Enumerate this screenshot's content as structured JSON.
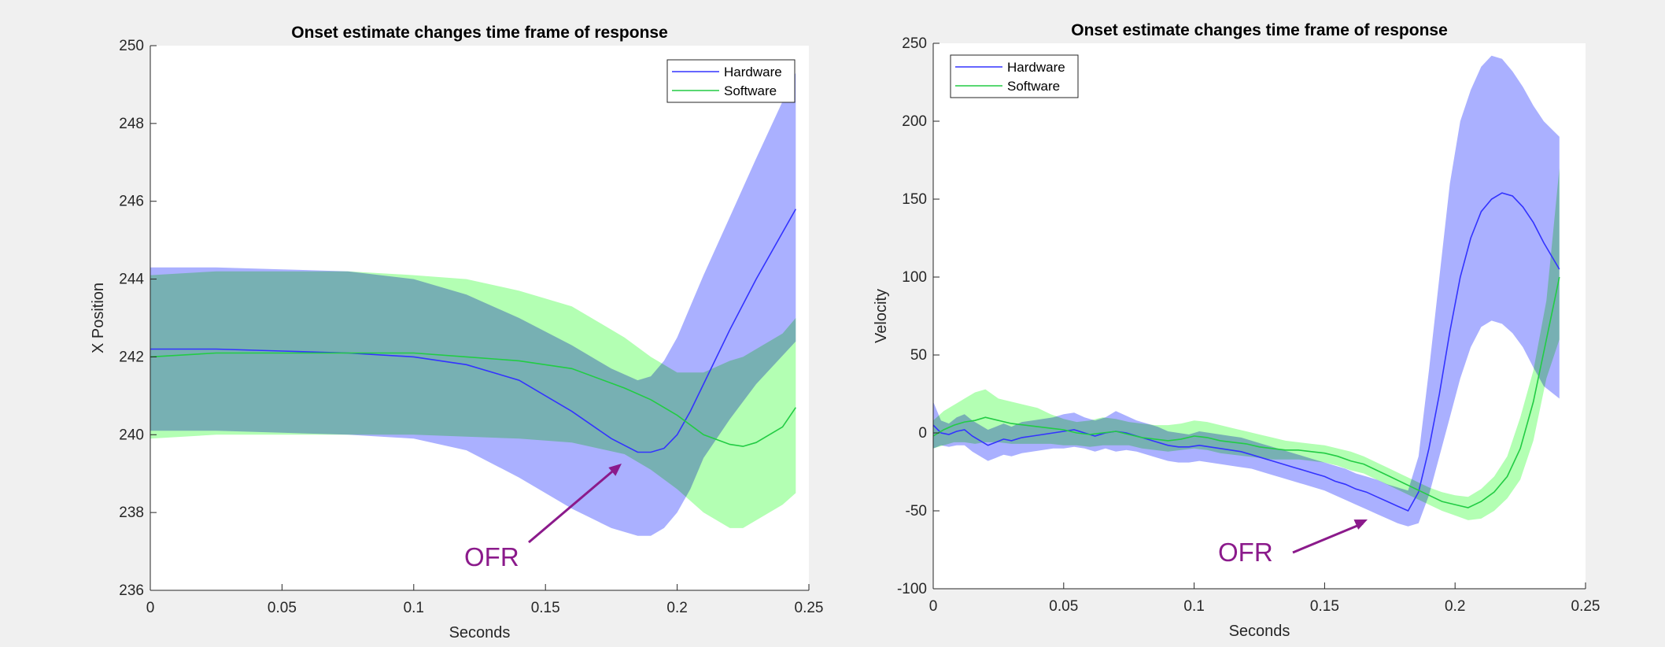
{
  "chart_data": [
    {
      "type": "line",
      "title": "Onset estimate changes time frame of response",
      "xlabel": "Seconds",
      "ylabel": "X Position",
      "xlim": [
        0,
        0.25
      ],
      "ylim": [
        236,
        250
      ],
      "xticks": [
        0,
        0.05,
        0.1,
        0.15,
        0.2,
        0.25
      ],
      "xtick_labels": [
        "0",
        "0.05",
        "0.1",
        "0.15",
        "0.2",
        "0.25"
      ],
      "yticks": [
        236,
        238,
        240,
        242,
        244,
        246,
        248,
        250
      ],
      "ytick_labels": [
        "236",
        "238",
        "240",
        "242",
        "244",
        "246",
        "248",
        "250"
      ],
      "grid": false,
      "legend": "top-right",
      "annotation": {
        "text": "OFR",
        "points_to": [
          0.179,
          239.3
        ],
        "color": "#8b1a8b"
      },
      "series": [
        {
          "name": "Hardware",
          "color": "#3333ff",
          "band_color": "#aab0ff",
          "x": [
            0,
            0.025,
            0.05,
            0.075,
            0.1,
            0.12,
            0.14,
            0.16,
            0.175,
            0.185,
            0.19,
            0.195,
            0.2,
            0.205,
            0.21,
            0.22,
            0.23,
            0.245
          ],
          "y": [
            242.2,
            242.2,
            242.15,
            242.1,
            242.0,
            241.8,
            241.4,
            240.6,
            239.9,
            239.55,
            239.55,
            239.65,
            240.0,
            240.6,
            241.3,
            242.7,
            244.0,
            245.8
          ],
          "upper": [
            244.3,
            244.3,
            244.25,
            244.2,
            244.0,
            243.6,
            243.0,
            242.3,
            241.7,
            241.4,
            241.5,
            241.9,
            242.5,
            243.3,
            244.1,
            245.6,
            247.1,
            249.3
          ],
          "lower": [
            240.1,
            240.1,
            240.05,
            240.0,
            239.9,
            239.6,
            238.9,
            238.1,
            237.6,
            237.4,
            237.4,
            237.6,
            238.0,
            238.6,
            239.4,
            240.4,
            241.3,
            242.4
          ]
        },
        {
          "name": "Software",
          "color": "#22cc44",
          "band_color": "#b3ffb3",
          "x": [
            0,
            0.025,
            0.05,
            0.075,
            0.1,
            0.12,
            0.14,
            0.16,
            0.18,
            0.19,
            0.2,
            0.21,
            0.22,
            0.225,
            0.23,
            0.24,
            0.245
          ],
          "y": [
            242.0,
            242.1,
            242.1,
            242.1,
            242.1,
            242.0,
            241.9,
            241.7,
            241.2,
            240.9,
            240.5,
            240.0,
            239.75,
            239.7,
            239.8,
            240.2,
            240.7
          ],
          "upper": [
            244.1,
            244.2,
            244.2,
            244.2,
            244.1,
            244.0,
            243.7,
            243.3,
            242.5,
            242.0,
            241.6,
            241.6,
            241.9,
            242.0,
            242.2,
            242.6,
            243.0
          ],
          "lower": [
            239.9,
            240.0,
            240.0,
            240.0,
            240.0,
            239.95,
            239.9,
            239.8,
            239.5,
            239.1,
            238.6,
            238.0,
            237.6,
            237.6,
            237.8,
            238.2,
            238.5
          ]
        }
      ]
    },
    {
      "type": "line",
      "title": "Onset estimate changes time frame of response",
      "xlabel": "Seconds",
      "ylabel": "Velocity",
      "xlim": [
        0,
        0.25
      ],
      "ylim": [
        -100,
        250
      ],
      "xticks": [
        0,
        0.05,
        0.1,
        0.15,
        0.2,
        0.25
      ],
      "xtick_labels": [
        "0",
        "0.05",
        "0.1",
        "0.15",
        "0.2",
        "0.25"
      ],
      "yticks": [
        -100,
        -50,
        0,
        50,
        100,
        150,
        200,
        250
      ],
      "ytick_labels": [
        "-100",
        "-50",
        "0",
        "50",
        "100",
        "150",
        "200",
        "250"
      ],
      "grid": false,
      "legend": "top-left",
      "annotation": {
        "text": "OFR",
        "points_to": [
          0.166,
          -51
        ],
        "color": "#8b1a8b"
      },
      "series": [
        {
          "name": "Hardware",
          "color": "#3333ff",
          "band_color": "#aab0ff",
          "x": [
            0,
            0.003,
            0.006,
            0.009,
            0.012,
            0.015,
            0.018,
            0.021,
            0.024,
            0.027,
            0.03,
            0.034,
            0.038,
            0.042,
            0.046,
            0.05,
            0.054,
            0.058,
            0.062,
            0.066,
            0.07,
            0.074,
            0.078,
            0.082,
            0.086,
            0.09,
            0.094,
            0.098,
            0.102,
            0.106,
            0.11,
            0.114,
            0.118,
            0.122,
            0.126,
            0.13,
            0.134,
            0.138,
            0.142,
            0.146,
            0.15,
            0.154,
            0.158,
            0.162,
            0.166,
            0.17,
            0.174,
            0.178,
            0.182,
            0.186,
            0.19,
            0.194,
            0.198,
            0.202,
            0.206,
            0.21,
            0.214,
            0.218,
            0.222,
            0.226,
            0.23,
            0.234,
            0.24
          ],
          "y": [
            5,
            0,
            -1,
            1,
            2,
            -2,
            -5,
            -8,
            -6,
            -4,
            -5,
            -3,
            -2,
            -1,
            0,
            1,
            2,
            0,
            -2,
            0,
            1,
            0,
            -2,
            -4,
            -6,
            -8,
            -9,
            -9,
            -8,
            -9,
            -10,
            -11,
            -12,
            -14,
            -16,
            -18,
            -20,
            -22,
            -24,
            -26,
            -28,
            -31,
            -33,
            -36,
            -38,
            -41,
            -44,
            -47,
            -50,
            -38,
            -10,
            25,
            65,
            100,
            125,
            142,
            150,
            154,
            152,
            145,
            135,
            122,
            105
          ],
          "upper": [
            20,
            8,
            6,
            10,
            12,
            8,
            5,
            2,
            4,
            6,
            4,
            7,
            8,
            9,
            10,
            12,
            13,
            10,
            8,
            10,
            14,
            11,
            8,
            6,
            4,
            1,
            0,
            -1,
            1,
            0,
            -1,
            -2,
            -3,
            -5,
            -7,
            -9,
            -11,
            -13,
            -15,
            -17,
            -19,
            -21,
            -23,
            -26,
            -28,
            -30,
            -33,
            -35,
            -37,
            -15,
            40,
            100,
            160,
            200,
            220,
            235,
            242,
            240,
            232,
            222,
            210,
            200,
            190
          ],
          "upper_note": "band upper edge",
          "lower": [
            -10,
            -8,
            -9,
            -8,
            -8,
            -12,
            -15,
            -18,
            -16,
            -14,
            -15,
            -13,
            -12,
            -11,
            -10,
            -10,
            -9,
            -10,
            -12,
            -10,
            -12,
            -11,
            -12,
            -14,
            -16,
            -18,
            -19,
            -19,
            -18,
            -19,
            -20,
            -21,
            -22,
            -23,
            -25,
            -27,
            -29,
            -31,
            -33,
            -35,
            -37,
            -40,
            -43,
            -46,
            -49,
            -52,
            -55,
            -58,
            -60,
            -58,
            -40,
            -15,
            10,
            35,
            55,
            68,
            72,
            70,
            64,
            55,
            42,
            30,
            22
          ]
        },
        {
          "name": "Software",
          "color": "#22cc44",
          "band_color": "#b3ffb3",
          "x": [
            0,
            0.004,
            0.008,
            0.012,
            0.016,
            0.02,
            0.025,
            0.03,
            0.035,
            0.04,
            0.045,
            0.05,
            0.055,
            0.06,
            0.065,
            0.07,
            0.075,
            0.08,
            0.085,
            0.09,
            0.095,
            0.1,
            0.105,
            0.11,
            0.115,
            0.12,
            0.125,
            0.13,
            0.135,
            0.14,
            0.145,
            0.15,
            0.155,
            0.16,
            0.165,
            0.17,
            0.175,
            0.18,
            0.185,
            0.19,
            0.195,
            0.2,
            0.205,
            0.21,
            0.215,
            0.22,
            0.225,
            0.23,
            0.235,
            0.24
          ],
          "y": [
            -2,
            2,
            5,
            7,
            8,
            10,
            8,
            6,
            5,
            4,
            3,
            2,
            0,
            -1,
            0,
            1,
            -1,
            -3,
            -4,
            -5,
            -4,
            -2,
            -3,
            -5,
            -6,
            -7,
            -9,
            -10,
            -11,
            -11,
            -12,
            -13,
            -15,
            -18,
            -20,
            -24,
            -28,
            -32,
            -36,
            -40,
            -44,
            -46,
            -48,
            -44,
            -38,
            -28,
            -10,
            20,
            60,
            100
          ],
          "upper": [
            8,
            14,
            18,
            22,
            26,
            28,
            22,
            20,
            18,
            16,
            12,
            9,
            7,
            8,
            10,
            9,
            7,
            6,
            5,
            5,
            6,
            8,
            7,
            5,
            3,
            1,
            -1,
            -3,
            -5,
            -6,
            -7,
            -8,
            -10,
            -12,
            -15,
            -19,
            -23,
            -27,
            -31,
            -35,
            -38,
            -40,
            -41,
            -36,
            -28,
            -15,
            10,
            40,
            85,
            170
          ],
          "lower": [
            -10,
            -8,
            -6,
            -6,
            -7,
            -6,
            -6,
            -7,
            -7,
            -7,
            -7,
            -8,
            -8,
            -9,
            -8,
            -8,
            -8,
            -10,
            -11,
            -12,
            -11,
            -10,
            -11,
            -13,
            -14,
            -15,
            -16,
            -17,
            -17,
            -17,
            -18,
            -19,
            -21,
            -24,
            -26,
            -30,
            -34,
            -38,
            -42,
            -46,
            -50,
            -53,
            -56,
            -55,
            -50,
            -42,
            -30,
            -5,
            35,
            60
          ]
        }
      ]
    }
  ]
}
